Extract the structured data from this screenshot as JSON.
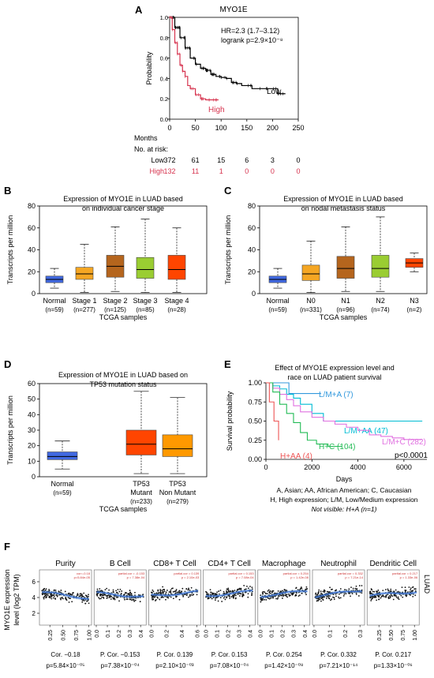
{
  "chart_data": [
    {
      "panel": "A",
      "type": "line",
      "title": "MYO1E",
      "ylabel": "Probability",
      "xlabel": "Months",
      "xlim": [
        0,
        250
      ],
      "ylim": [
        0,
        1
      ],
      "x_ticks": [
        "0",
        "50",
        "100",
        "150",
        "200",
        "250"
      ],
      "y_ticks": [
        "0.0",
        "0.2",
        "0.4",
        "0.6",
        "0.8",
        "1.0"
      ],
      "stats": [
        "HR=2.3 (1.7–3.12)",
        "logrank p=2.9×10⁻⁸"
      ],
      "risk_table": {
        "header": "No. at risk:",
        "rows": [
          {
            "name": "Low",
            "color": "#000000",
            "values": [
              "372",
              "61",
              "15",
              "6",
              "3",
              "0"
            ]
          },
          {
            "name": "High",
            "color": "#d6334e",
            "values": [
              "132",
              "11",
              "1",
              "0",
              "0",
              "0"
            ]
          }
        ]
      },
      "series": [
        {
          "name": "Low",
          "color": "#000000",
          "x": [
            0,
            10,
            20,
            30,
            40,
            50,
            60,
            70,
            80,
            90,
            100,
            110,
            120,
            130,
            140,
            150,
            160,
            170,
            180,
            190,
            200,
            210,
            225
          ],
          "y": [
            1.0,
            0.9,
            0.8,
            0.7,
            0.6,
            0.54,
            0.5,
            0.48,
            0.44,
            0.42,
            0.41,
            0.4,
            0.36,
            0.35,
            0.33,
            0.33,
            0.3,
            0.3,
            0.3,
            0.3,
            0.3,
            0.25,
            0.25
          ]
        },
        {
          "name": "High",
          "color": "#d6334e",
          "x": [
            0,
            5,
            10,
            15,
            20,
            25,
            30,
            35,
            40,
            50,
            60,
            70,
            80,
            95
          ],
          "y": [
            1.0,
            0.88,
            0.75,
            0.64,
            0.53,
            0.47,
            0.42,
            0.33,
            0.3,
            0.24,
            0.2,
            0.19,
            0.19,
            0.19
          ]
        }
      ]
    },
    {
      "panel": "B",
      "type": "box",
      "title": [
        "Expression of MYO1E in LUAD based",
        "on individual cancer stage"
      ],
      "ylabel": "Transcripts per million",
      "xlabel": "TCGA samples",
      "ylim": [
        0,
        80
      ],
      "y_ticks": [
        "0",
        "20",
        "40",
        "60",
        "80"
      ],
      "boxes": [
        {
          "label": "Normal",
          "n": "(n=59)",
          "color": "#4169e1",
          "min": 5,
          "q1": 10,
          "median": 13,
          "q3": 16,
          "max": 23
        },
        {
          "label": "Stage 1",
          "n": "(n=277)",
          "color": "#f5a623",
          "min": 1,
          "q1": 13,
          "median": 18,
          "q3": 24,
          "max": 45
        },
        {
          "label": "Stage 2",
          "n": "(n=125)",
          "color": "#b5651d",
          "min": 2,
          "q1": 15,
          "median": 25,
          "q3": 35,
          "max": 61
        },
        {
          "label": "Stage 3",
          "n": "(n=85)",
          "color": "#9acd32",
          "min": 1,
          "q1": 14,
          "median": 22,
          "q3": 33,
          "max": 68
        },
        {
          "label": "Stage 4",
          "n": "(n=28)",
          "color": "#ff4500",
          "min": 1,
          "q1": 13,
          "median": 22,
          "q3": 35,
          "max": 60
        }
      ]
    },
    {
      "panel": "C",
      "type": "box",
      "title": [
        "Expression of MYO1E in LUAD based",
        "on nodal metastasis status"
      ],
      "ylabel": "Transcripts per million",
      "xlabel": "TCGA samples",
      "ylim": [
        0,
        80
      ],
      "y_ticks": [
        "0",
        "20",
        "40",
        "60",
        "80"
      ],
      "boxes": [
        {
          "label": "Normal",
          "n": "(n=59)",
          "color": "#4169e1",
          "min": 5,
          "q1": 10,
          "median": 13,
          "q3": 16,
          "max": 23
        },
        {
          "label": "N0",
          "n": "(n=331)",
          "color": "#f5a623",
          "min": 1,
          "q1": 12,
          "median": 18,
          "q3": 26,
          "max": 48
        },
        {
          "label": "N1",
          "n": "(n=96)",
          "color": "#b5651d",
          "min": 2,
          "q1": 14,
          "median": 23,
          "q3": 34,
          "max": 61
        },
        {
          "label": "N2",
          "n": "(n=74)",
          "color": "#9acd32",
          "min": 2,
          "q1": 15,
          "median": 23,
          "q3": 35,
          "max": 70
        },
        {
          "label": "N3",
          "n": "(n=2)",
          "color": "#ff4500",
          "min": 20,
          "q1": 24,
          "median": 28,
          "q3": 32,
          "max": 37
        }
      ]
    },
    {
      "panel": "D",
      "type": "box",
      "title": [
        "Expression of MYO1E in LUAD based on",
        "TP53 mutation status"
      ],
      "ylabel": "Transcripts per million",
      "xlabel": "TCGA samples",
      "ylim": [
        0,
        60
      ],
      "y_ticks": [
        "0",
        "10",
        "20",
        "30",
        "40",
        "50",
        "60"
      ],
      "boxes": [
        {
          "label": "Normal",
          "n": "(n=59)",
          "color": "#4169e1",
          "min": 5,
          "q1": 11,
          "median": 13,
          "q3": 16,
          "max": 23
        },
        {
          "label": "TP53|Mutant",
          "n": "(n=233)",
          "color": "#ff4500",
          "min": 2,
          "q1": 14,
          "median": 21,
          "q3": 30,
          "max": 55
        },
        {
          "label": "TP53|Non Mutant",
          "n": "(n=279)",
          "color": "#ff9900",
          "min": 2,
          "q1": 13,
          "median": 18,
          "q3": 27,
          "max": 51
        }
      ]
    },
    {
      "panel": "E",
      "type": "line",
      "title": [
        "Effect of MYO1E expression level and",
        "race on LUAD patient survival"
      ],
      "ylabel": "Survival probability",
      "xlabel": "Days",
      "xlim": [
        0,
        7000
      ],
      "ylim": [
        0,
        1
      ],
      "x_ticks": [
        "0",
        "2000",
        "4000",
        "6000"
      ],
      "y_ticks": [
        "0.00",
        "0.25",
        "0.50",
        "0.75",
        "1.00"
      ],
      "pvalue": "p<0.0001",
      "legend_text": [
        "A, Asian; AA, African American; C, Caucasian",
        "H, High expression; L/M, Low/Medium expression"
      ],
      "note": "Not visible: H+A (n=1)",
      "series": [
        {
          "name": "L/M+A (7)",
          "color": "#3399dd",
          "x": [
            0,
            500,
            1000,
            1500,
            2400
          ],
          "y": [
            1.0,
            1.0,
            0.86,
            0.86,
            0.86
          ]
        },
        {
          "name": "L/M+AA (47)",
          "color": "#00bcd4",
          "x": [
            0,
            300,
            600,
            900,
            1200,
            1500,
            2000,
            2500,
            6800
          ],
          "y": [
            1.0,
            0.96,
            0.92,
            0.85,
            0.8,
            0.72,
            0.6,
            0.5,
            0.5
          ]
        },
        {
          "name": "L/M+C (282)",
          "color": "#e070e0",
          "x": [
            0,
            300,
            600,
            900,
            1200,
            1500,
            2000,
            2500,
            3000,
            3500,
            4000,
            4500,
            5000,
            5500,
            6000,
            6800
          ],
          "y": [
            1.0,
            0.93,
            0.85,
            0.78,
            0.7,
            0.62,
            0.55,
            0.5,
            0.46,
            0.42,
            0.38,
            0.32,
            0.3,
            0.28,
            0.26,
            0.26
          ]
        },
        {
          "name": "H+C (104)",
          "color": "#22bb55",
          "x": [
            0,
            300,
            600,
            900,
            1200,
            1500,
            1800,
            2200,
            2700,
            3300
          ],
          "y": [
            1.0,
            0.88,
            0.72,
            0.6,
            0.48,
            0.35,
            0.25,
            0.2,
            0.17,
            0.17
          ]
        },
        {
          "name": "H+AA (4)",
          "color": "#ee5555",
          "x": [
            0,
            150,
            250,
            350,
            450,
            550
          ],
          "y": [
            1.0,
            0.75,
            0.75,
            0.5,
            0.5,
            0.25
          ]
        }
      ]
    },
    {
      "panel": "F",
      "type": "scatter",
      "ylabel": [
        "MYO1E expression",
        "level (log2 TPM)"
      ],
      "side_label": "LUAD",
      "ylim": [
        0.5,
        7.5
      ],
      "y_ticks": [
        "2",
        "4",
        "6"
      ],
      "panels": [
        {
          "title": "Purity",
          "x_ticks": [
            "0.25",
            "0.50",
            "0.75",
            "1.00"
          ],
          "xlim": [
            0.05,
            1.05
          ],
          "cor": "Cor. −0.18",
          "p": "p=5.84×10⁻⁰⁵",
          "inset": [
            "cor=-0.18",
            "p=5.84e-05"
          ]
        },
        {
          "title": "B Cell",
          "x_ticks": [
            "0.0",
            "0.1",
            "0.2",
            "0.3",
            "0.4"
          ],
          "xlim": [
            -0.02,
            0.45
          ],
          "cor": "P. Cor. −0.153",
          "p": "p=7.38×10⁻⁰⁴",
          "inset": [
            "partial.cor = -0.153",
            "p = 7.38e-04"
          ]
        },
        {
          "title": "CD8+ T Cell",
          "x_ticks": [
            "0.0",
            "0.2",
            "0.4",
            "0.6"
          ],
          "xlim": [
            -0.03,
            0.65
          ],
          "cor": "P. Cor. 0.139",
          "p": "p=2.10×10⁻⁰³",
          "inset": [
            "partial.cor = 0.139",
            "p = 2.10e-03"
          ]
        },
        {
          "title": "CD4+ T Cell",
          "x_ticks": [
            "0.0",
            "0.1",
            "0.2",
            "0.3",
            "0.4"
          ],
          "xlim": [
            -0.02,
            0.45
          ],
          "cor": "P. Cor. 0.153",
          "p": "p=7.08×10⁻⁰⁴",
          "inset": [
            "partial.cor = 0.153",
            "p = 7.08e-04"
          ]
        },
        {
          "title": "Macrophage",
          "x_ticks": [
            "0.0",
            "0.1",
            "0.2",
            "0.3",
            "0.4"
          ],
          "xlim": [
            -0.02,
            0.45
          ],
          "cor": "P. Cor. 0.254",
          "p": "p=1.42×10⁻⁰⁸",
          "inset": [
            "partial.cor = 0.254",
            "p = 1.42e-08"
          ]
        },
        {
          "title": "Neutrophil",
          "x_ticks": [
            "0.0",
            "0.1",
            "0.2",
            "0.3"
          ],
          "xlim": [
            -0.01,
            0.33
          ],
          "cor": "P. Cor. 0.332",
          "p": "p=7.21×10⁻¹⁴",
          "inset": [
            "partial.cor = 0.332",
            "p = 7.21e-14"
          ]
        },
        {
          "title": "Dendritic Cell",
          "x_ticks": [
            "0.25",
            "0.50",
            "0.75",
            "1.00"
          ],
          "xlim": [
            0.0,
            1.1
          ],
          "cor": "P. Cor. 0.217",
          "p": "p=1.33×10⁻⁰⁶",
          "inset": [
            "partial.cor = 0.217",
            "p = 1.33e-06"
          ]
        }
      ]
    }
  ],
  "panel_letters": [
    "A",
    "B",
    "C",
    "D",
    "E",
    "F"
  ]
}
